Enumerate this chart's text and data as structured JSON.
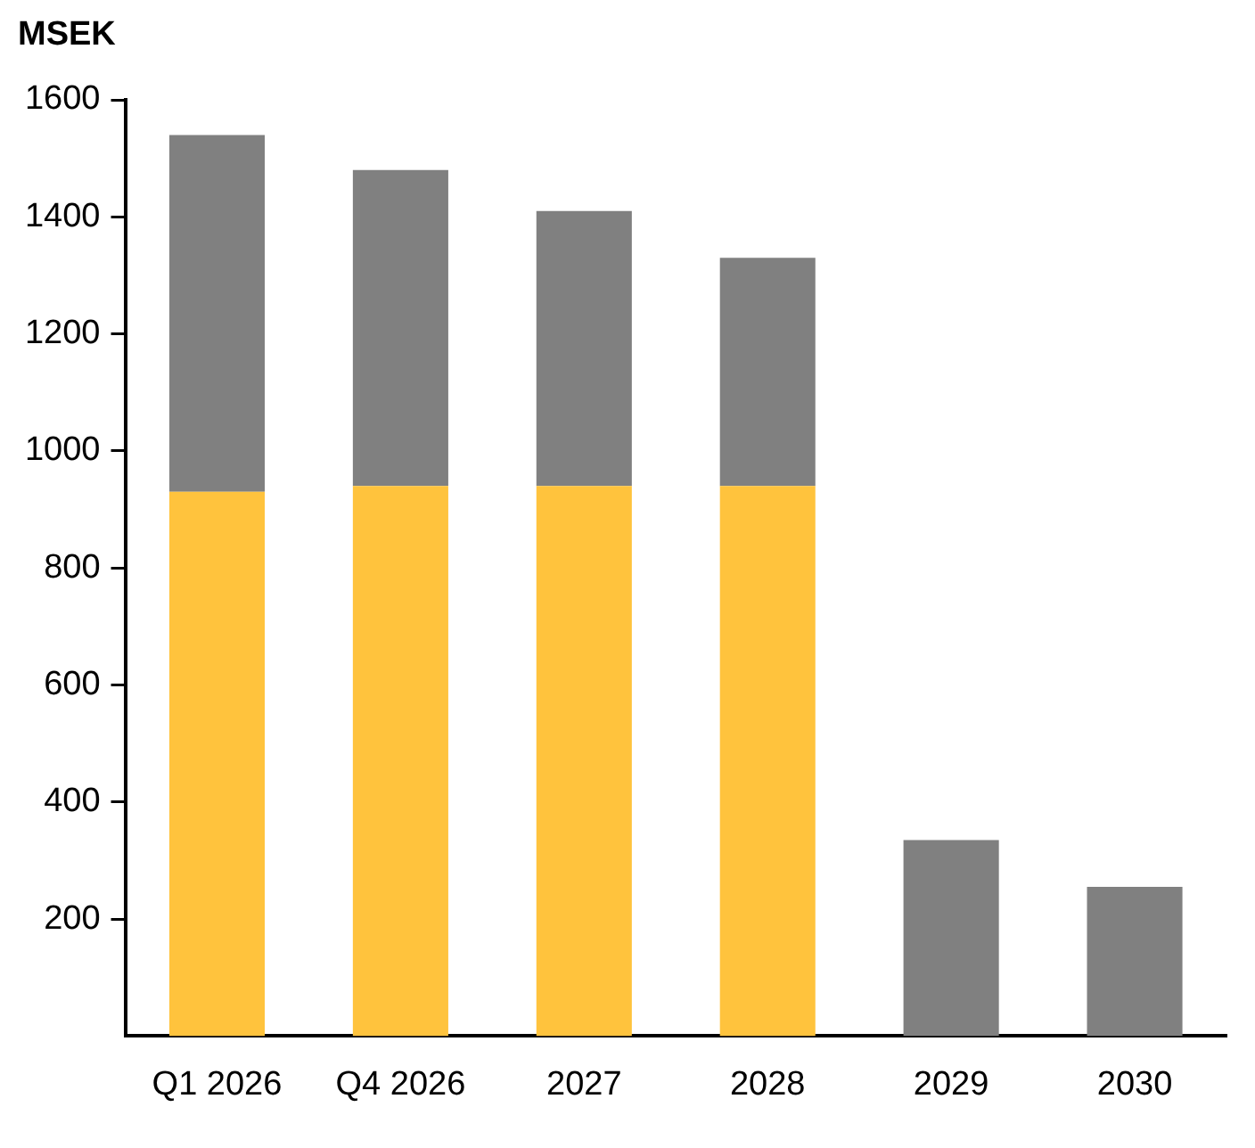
{
  "chart_data": {
    "type": "bar",
    "ylabel": "MSEK",
    "stacked": true,
    "categories": [
      "Q1 2026",
      "Q4 2026",
      "2027",
      "2028",
      "2029",
      "2030"
    ],
    "series": [
      {
        "color": "#ffc33d",
        "values": [
          930,
          940,
          940,
          940,
          null,
          null
        ]
      },
      {
        "color": "#808080",
        "values": [
          610,
          540,
          470,
          390,
          335,
          255
        ]
      }
    ],
    "ylim": [
      0,
      1600
    ],
    "yticks": [
      200,
      400,
      600,
      800,
      1000,
      1200,
      1400,
      1600
    ],
    "grid": false,
    "legend": false
  }
}
